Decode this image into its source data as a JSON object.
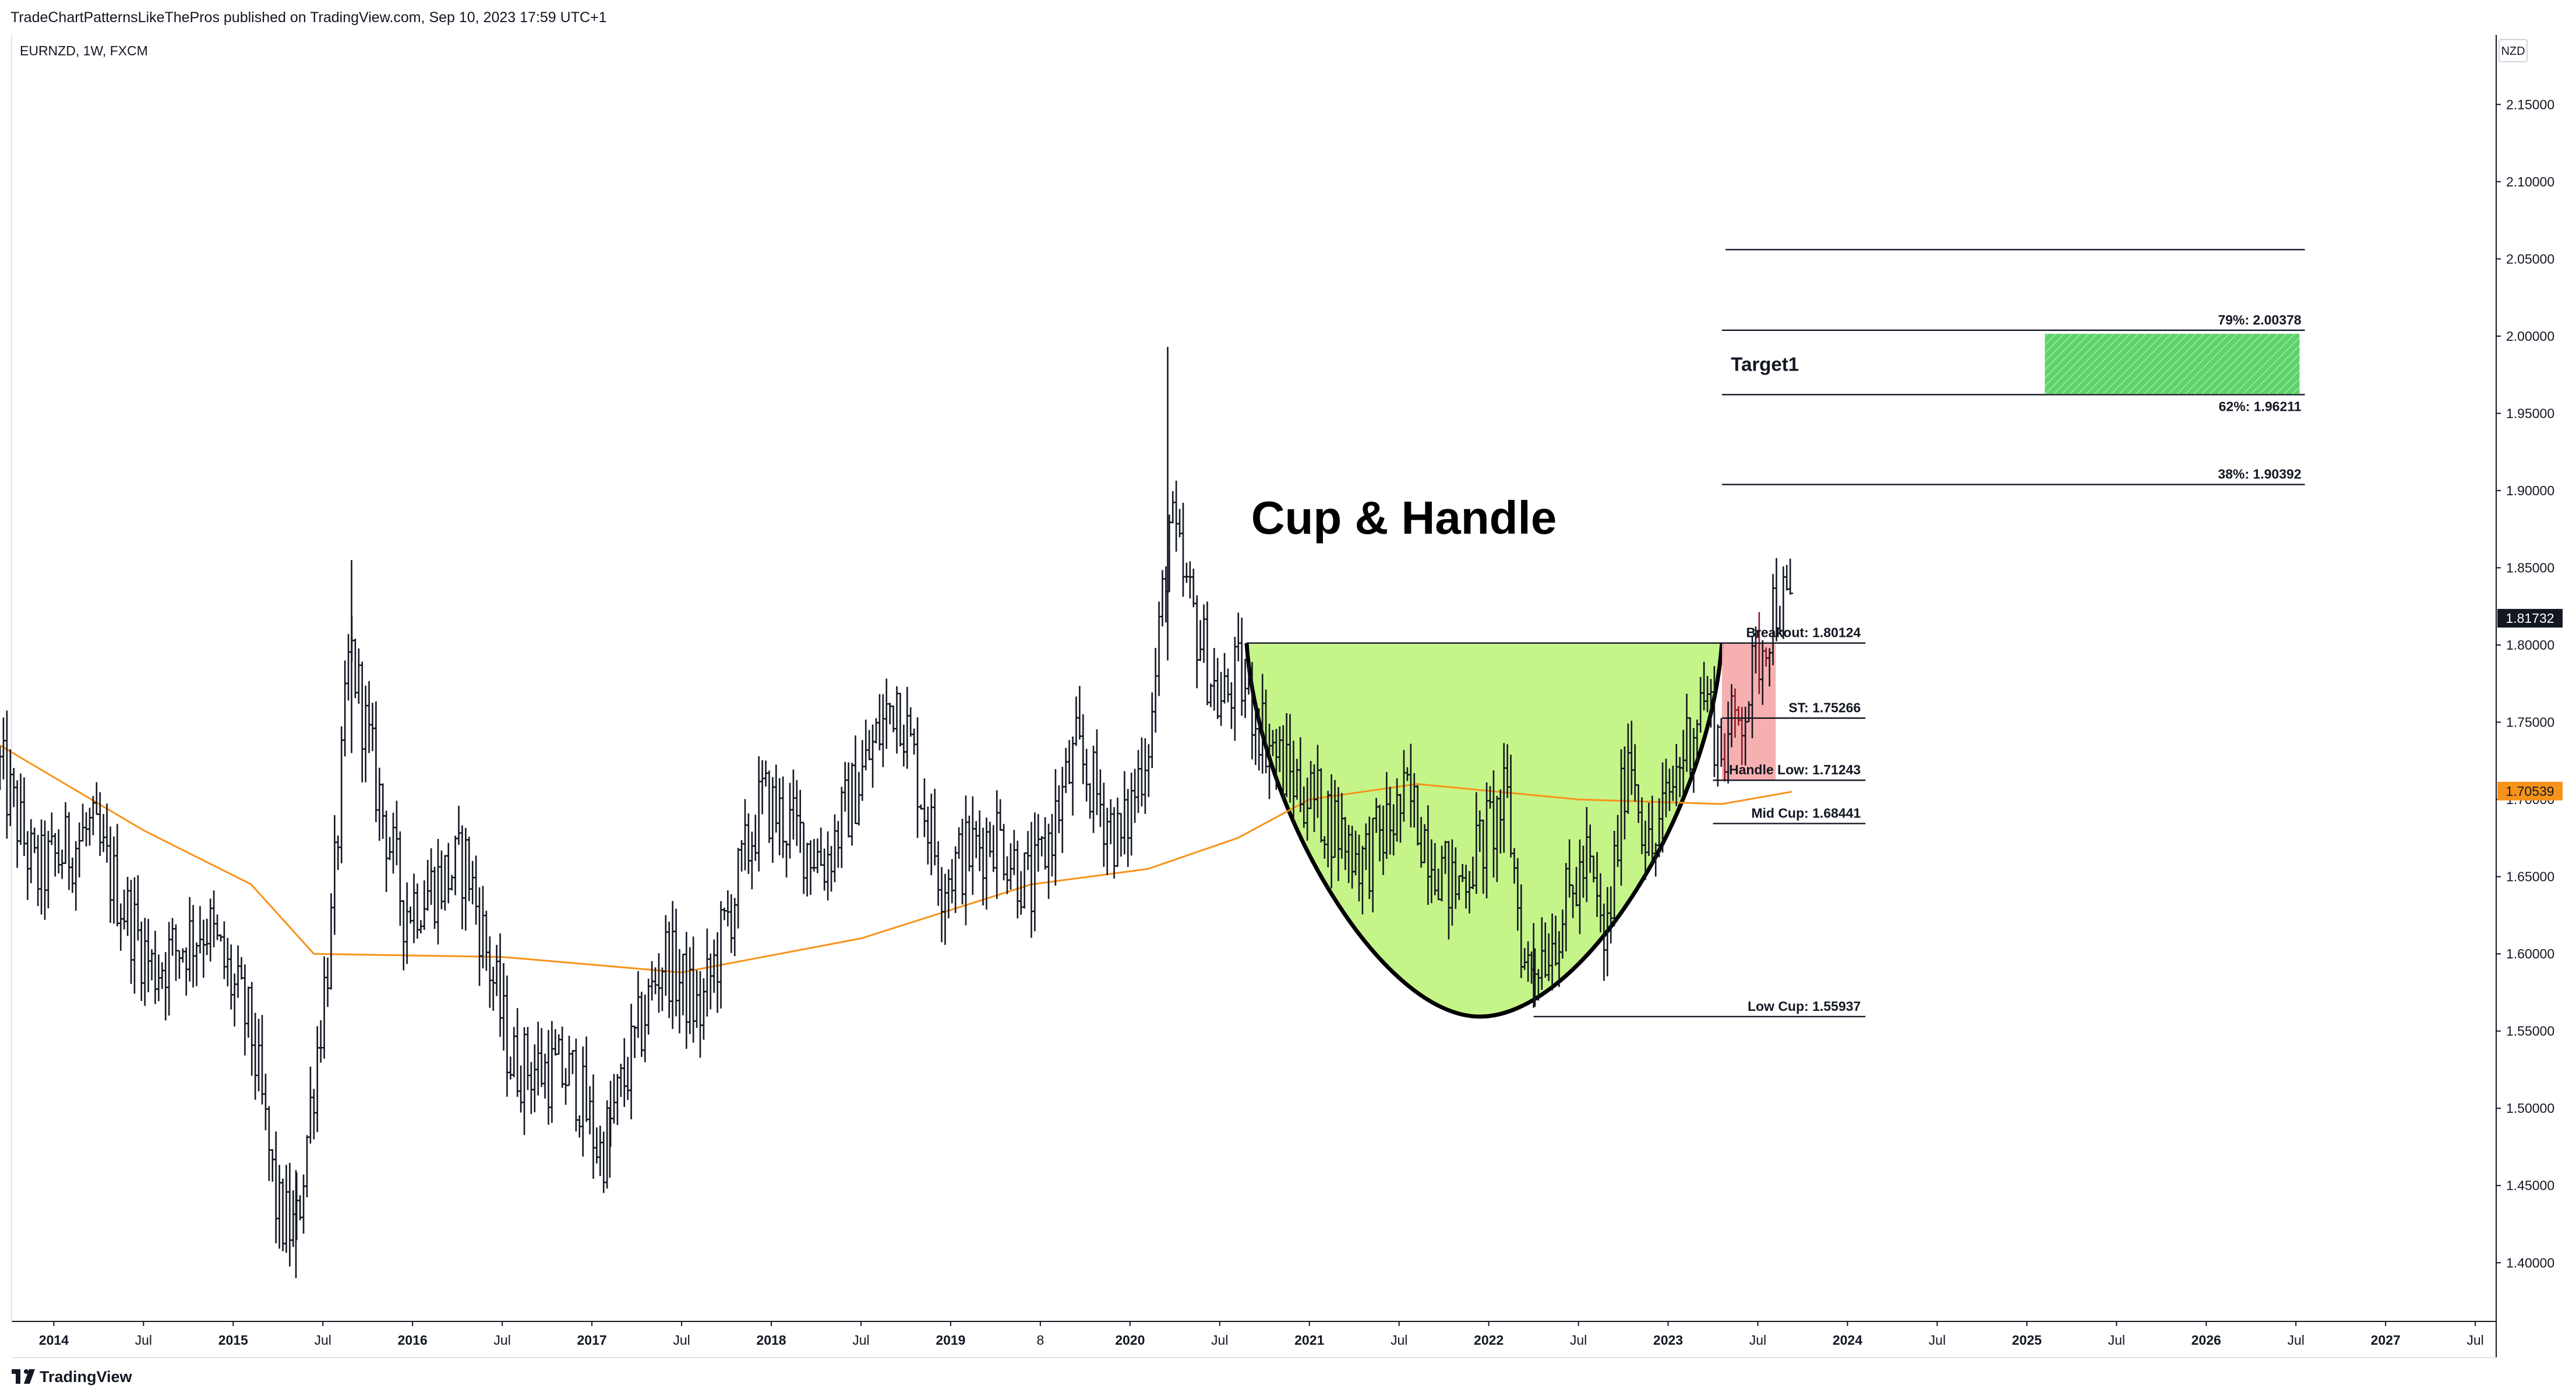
{
  "header": {
    "published_by": "TradeChartPatternsLikeThePros published on TradingView.com, Sep 10, 2023 17:59 UTC+1",
    "symbol_info": "EURNZD, 1W, FXCM",
    "currency": "NZD"
  },
  "footer": {
    "logo_text": "TradingView"
  },
  "chart_data": {
    "type": "ohlc-bar",
    "symbol": "EURNZD",
    "timeframe": "1W",
    "source": "FXCM",
    "currency": "NZD",
    "x_axis": {
      "labels": [
        "2014",
        "Jul",
        "2015",
        "Jul",
        "2016",
        "Jul",
        "2017",
        "Jul",
        "2018",
        "Jul",
        "2019",
        "8",
        "2020",
        "Jul",
        "2021",
        "Jul",
        "2022",
        "Jul",
        "2023",
        "Jul",
        "2024",
        "Jul",
        "2025",
        "Jul",
        "2026",
        "Jul",
        "2027",
        "Jul"
      ],
      "year_labels": [
        "2014",
        "2015",
        "2016",
        "2017",
        "2018",
        "2019",
        "2020",
        "2021",
        "2022",
        "2023",
        "2024",
        "2025",
        "2026",
        "2027"
      ],
      "range": [
        "2013-09",
        "2028-02"
      ]
    },
    "y_axis": {
      "ticks": [
        "2.15000",
        "2.10000",
        "2.05000",
        "2.00000",
        "1.95000",
        "1.90000",
        "1.85000",
        "1.80000",
        "1.75000",
        "1.70000",
        "1.65000",
        "1.60000",
        "1.55000",
        "1.50000",
        "1.45000",
        "1.40000"
      ],
      "range": [
        1.362,
        2.195
      ]
    },
    "price_anchors": [
      {
        "t": 2013.7,
        "p": 1.72
      },
      {
        "t": 2013.9,
        "p": 1.65
      },
      {
        "t": 2014.2,
        "p": 1.68
      },
      {
        "t": 2014.55,
        "p": 1.59
      },
      {
        "t": 2014.85,
        "p": 1.62
      },
      {
        "t": 2015.1,
        "p": 1.55
      },
      {
        "t": 2015.25,
        "p": 1.43
      },
      {
        "t": 2015.35,
        "p": 1.42
      },
      {
        "t": 2015.55,
        "p": 1.62
      },
      {
        "t": 2015.65,
        "p": 1.8
      },
      {
        "t": 2015.78,
        "p": 1.72
      },
      {
        "t": 2015.95,
        "p": 1.63
      },
      {
        "t": 2016.3,
        "p": 1.66
      },
      {
        "t": 2016.55,
        "p": 1.53
      },
      {
        "t": 2016.9,
        "p": 1.52
      },
      {
        "t": 2017.05,
        "p": 1.47
      },
      {
        "t": 2017.4,
        "p": 1.6
      },
      {
        "t": 2017.6,
        "p": 1.56
      },
      {
        "t": 2017.95,
        "p": 1.7
      },
      {
        "t": 2018.3,
        "p": 1.66
      },
      {
        "t": 2018.7,
        "p": 1.77
      },
      {
        "t": 2018.95,
        "p": 1.65
      },
      {
        "t": 2019.25,
        "p": 1.68
      },
      {
        "t": 2019.45,
        "p": 1.64
      },
      {
        "t": 2019.7,
        "p": 1.73
      },
      {
        "t": 2019.95,
        "p": 1.67
      },
      {
        "t": 2020.12,
        "p": 1.75
      },
      {
        "t": 2020.22,
        "p": 1.88
      },
      {
        "t": 2020.3,
        "p": 1.84
      },
      {
        "t": 2020.5,
        "p": 1.76
      },
      {
        "t": 2020.6,
        "p": 1.78
      },
      {
        "t": 2020.85,
        "p": 1.72
      },
      {
        "t": 2021.1,
        "p": 1.69
      },
      {
        "t": 2021.3,
        "p": 1.66
      },
      {
        "t": 2021.55,
        "p": 1.7
      },
      {
        "t": 2021.8,
        "p": 1.64
      },
      {
        "t": 2021.95,
        "p": 1.67
      },
      {
        "t": 2022.1,
        "p": 1.7
      },
      {
        "t": 2022.2,
        "p": 1.59
      },
      {
        "t": 2022.35,
        "p": 1.61
      },
      {
        "t": 2022.55,
        "p": 1.66
      },
      {
        "t": 2022.65,
        "p": 1.6
      },
      {
        "t": 2022.78,
        "p": 1.74
      },
      {
        "t": 2022.9,
        "p": 1.66
      },
      {
        "t": 2023.05,
        "p": 1.72
      },
      {
        "t": 2023.2,
        "p": 1.77
      },
      {
        "t": 2023.3,
        "p": 1.73
      },
      {
        "t": 2023.45,
        "p": 1.77
      },
      {
        "t": 2023.52,
        "p": 1.8
      },
      {
        "t": 2023.6,
        "p": 1.83
      },
      {
        "t": 2023.69,
        "p": 1.82
      }
    ],
    "spikes": [
      {
        "t": 2015.66,
        "high": 1.855,
        "low": 1.73
      },
      {
        "t": 2020.21,
        "high": 1.993,
        "low": 1.79
      },
      {
        "t": 2015.35,
        "high": 1.46,
        "low": 1.39
      },
      {
        "t": 2017.1,
        "high": 1.5,
        "low": 1.455
      },
      {
        "t": 2022.25,
        "high": 1.62,
        "low": 1.565
      }
    ],
    "moving_average": {
      "color": "#f7931a",
      "last_value": "1.70539",
      "points": [
        {
          "t": 2013.7,
          "v": 1.735
        },
        {
          "t": 2014.5,
          "v": 1.68
        },
        {
          "t": 2015.1,
          "v": 1.645
        },
        {
          "t": 2015.45,
          "v": 1.6
        },
        {
          "t": 2016.5,
          "v": 1.598
        },
        {
          "t": 2017.5,
          "v": 1.588
        },
        {
          "t": 2018.5,
          "v": 1.61
        },
        {
          "t": 2019.45,
          "v": 1.645
        },
        {
          "t": 2020.1,
          "v": 1.655
        },
        {
          "t": 2020.6,
          "v": 1.675
        },
        {
          "t": 2021.0,
          "v": 1.7
        },
        {
          "t": 2021.6,
          "v": 1.71
        },
        {
          "t": 2022.5,
          "v": 1.7
        },
        {
          "t": 2023.3,
          "v": 1.697
        },
        {
          "t": 2023.69,
          "v": 1.705
        }
      ]
    },
    "last_price": "1.81732",
    "title": "Cup & Handle",
    "cup": {
      "fill": "#c5f589",
      "left": {
        "t": 2020.65,
        "p": 1.80124
      },
      "bottom": {
        "t": 2021.95,
        "p": 1.55937
      },
      "right": {
        "t": 2023.3,
        "p": 1.80124
      }
    },
    "handle_box": {
      "t_start": 2023.3,
      "t_end": 2023.6,
      "p_top": 1.80124,
      "p_bottom": 1.71243,
      "fill": "#f6a7a7"
    },
    "levels": [
      {
        "label": "Breakout: 1.80124",
        "value": 1.80124,
        "t_start": 2020.65,
        "t_end": 2024.1
      },
      {
        "label": "ST: 1.75266",
        "value": 1.75266,
        "t_start": 2023.3,
        "t_end": 2024.1
      },
      {
        "label": "Handle Low: 1.71243",
        "value": 1.71243,
        "t_start": 2023.25,
        "t_end": 2024.1
      },
      {
        "label": "Mid Cup: 1.68441",
        "value": 1.68441,
        "t_start": 2023.25,
        "t_end": 2024.1
      },
      {
        "label": "Low Cup: 1.55937",
        "value": 1.55937,
        "t_start": 2022.25,
        "t_end": 2024.1
      }
    ],
    "fib_levels": [
      {
        "label": "",
        "value": 2.056,
        "t_start": 2023.32,
        "t_end": 2026.55
      },
      {
        "label": "79%: 2.00378",
        "value": 2.00378,
        "t_start": 2023.3,
        "t_end": 2026.55
      },
      {
        "label": "62%: 1.96211",
        "value": 1.96211,
        "t_start": 2023.3,
        "t_end": 2026.55
      },
      {
        "label": "38%: 1.90392",
        "value": 1.90392,
        "t_start": 2023.3,
        "t_end": 2026.55
      }
    ],
    "target": {
      "label": "Target1",
      "box": {
        "t_start": 2025.1,
        "t_end": 2026.52,
        "p_top": 2.0015,
        "p_bottom": 1.9625
      },
      "fill": "#5fd36a"
    },
    "grid": false
  }
}
